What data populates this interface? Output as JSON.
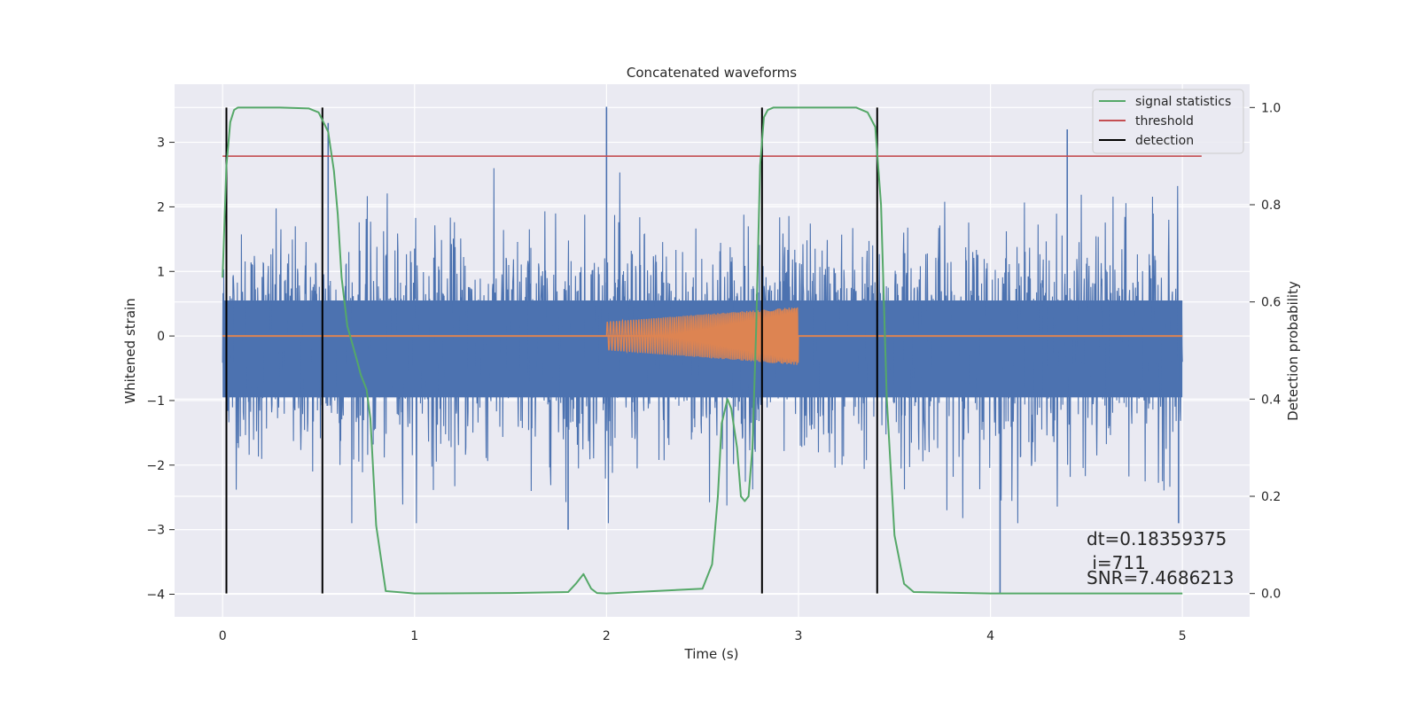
{
  "chart_data": {
    "type": "line",
    "title": "Concatenated waveforms",
    "xlabel": "Time (s)",
    "ylabel": "Whitened strain",
    "y2label": "Detection probability",
    "xlim": [
      -0.25,
      5.35
    ],
    "ylim": [
      -4.35,
      3.9
    ],
    "y2lim": [
      -0.048,
      1.048
    ],
    "xticks": [
      0,
      1,
      2,
      3,
      4,
      5
    ],
    "yticks": [
      -4,
      -3,
      -2,
      -1,
      0,
      1,
      2,
      3
    ],
    "y2ticks": [
      0.0,
      0.2,
      0.4,
      0.6,
      0.8,
      1.0
    ],
    "y2tick_labels": [
      "0.0",
      "0.2",
      "0.4",
      "0.6",
      "0.8",
      "1.0"
    ],
    "grid": true,
    "legend_position": "top-right",
    "colors": {
      "noise": "#4c72b0",
      "template": "#dd8452",
      "statistics": "#55a868",
      "threshold": "#c44e52",
      "detection": "#000000",
      "background": "#eaeaf2"
    },
    "series": [
      {
        "kind": "noise",
        "axis": "left",
        "x_range": [
          0,
          5
        ],
        "band": [
          -0.95,
          0.55
        ],
        "peak_values": [
          {
            "x": 2.0,
            "y": 3.55
          },
          {
            "x": 0.55,
            "y": 3.3
          },
          {
            "x": 4.4,
            "y": 3.2
          },
          {
            "x": 4.05,
            "y": -4.0
          },
          {
            "x": 1.8,
            "y": -3.0
          },
          {
            "x": 4.98,
            "y": -2.9
          }
        ]
      },
      {
        "kind": "template",
        "axis": "left",
        "x_range": [
          2.0,
          3.0
        ],
        "amp_start": 0.22,
        "amp_end": 0.45,
        "baseline": 0.0
      },
      {
        "name": "signal statistics",
        "kind": "statistics",
        "axis": "right",
        "x": [
          0.0,
          0.02,
          0.04,
          0.06,
          0.08,
          0.1,
          0.2,
          0.3,
          0.45,
          0.5,
          0.55,
          0.58,
          0.6,
          0.62,
          0.65,
          0.7,
          0.72,
          0.75,
          0.77,
          0.8,
          0.85,
          1.0,
          1.5,
          1.8,
          1.84,
          1.88,
          1.92,
          1.95,
          2.0,
          2.5,
          2.55,
          2.58,
          2.6,
          2.63,
          2.65,
          2.68,
          2.7,
          2.72,
          2.74,
          2.76,
          2.78,
          2.8,
          2.82,
          2.84,
          2.87,
          2.95,
          3.3,
          3.36,
          3.4,
          3.43,
          3.46,
          3.5,
          3.55,
          3.6,
          4.0,
          4.5,
          5.0
        ],
        "y": [
          0.65,
          0.88,
          0.97,
          0.995,
          1.0,
          1.0,
          1.0,
          1.0,
          0.998,
          0.99,
          0.95,
          0.87,
          0.78,
          0.65,
          0.55,
          0.48,
          0.45,
          0.42,
          0.36,
          0.14,
          0.005,
          0.0,
          0.001,
          0.003,
          0.02,
          0.04,
          0.01,
          0.001,
          0.0,
          0.01,
          0.06,
          0.2,
          0.35,
          0.4,
          0.38,
          0.3,
          0.2,
          0.19,
          0.2,
          0.3,
          0.55,
          0.88,
          0.98,
          0.995,
          1.0,
          1.0,
          1.0,
          0.99,
          0.96,
          0.8,
          0.4,
          0.12,
          0.02,
          0.003,
          0.0,
          0.0,
          0.0
        ]
      },
      {
        "name": "threshold",
        "kind": "threshold",
        "axis": "right",
        "x": [
          0.0,
          5.1
        ],
        "y": [
          0.9,
          0.9
        ]
      },
      {
        "name": "detection",
        "kind": "detection",
        "axis": "right",
        "x_positions": [
          0.02,
          0.52,
          2.81,
          3.41
        ],
        "y_range": [
          0.0,
          1.0
        ]
      }
    ],
    "legend": [
      "signal statistics",
      "threshold",
      "detection"
    ],
    "annotations": {
      "dt": "dt=0.18359375",
      "i": " i=711",
      "snr": "SNR=7.4686213"
    }
  }
}
